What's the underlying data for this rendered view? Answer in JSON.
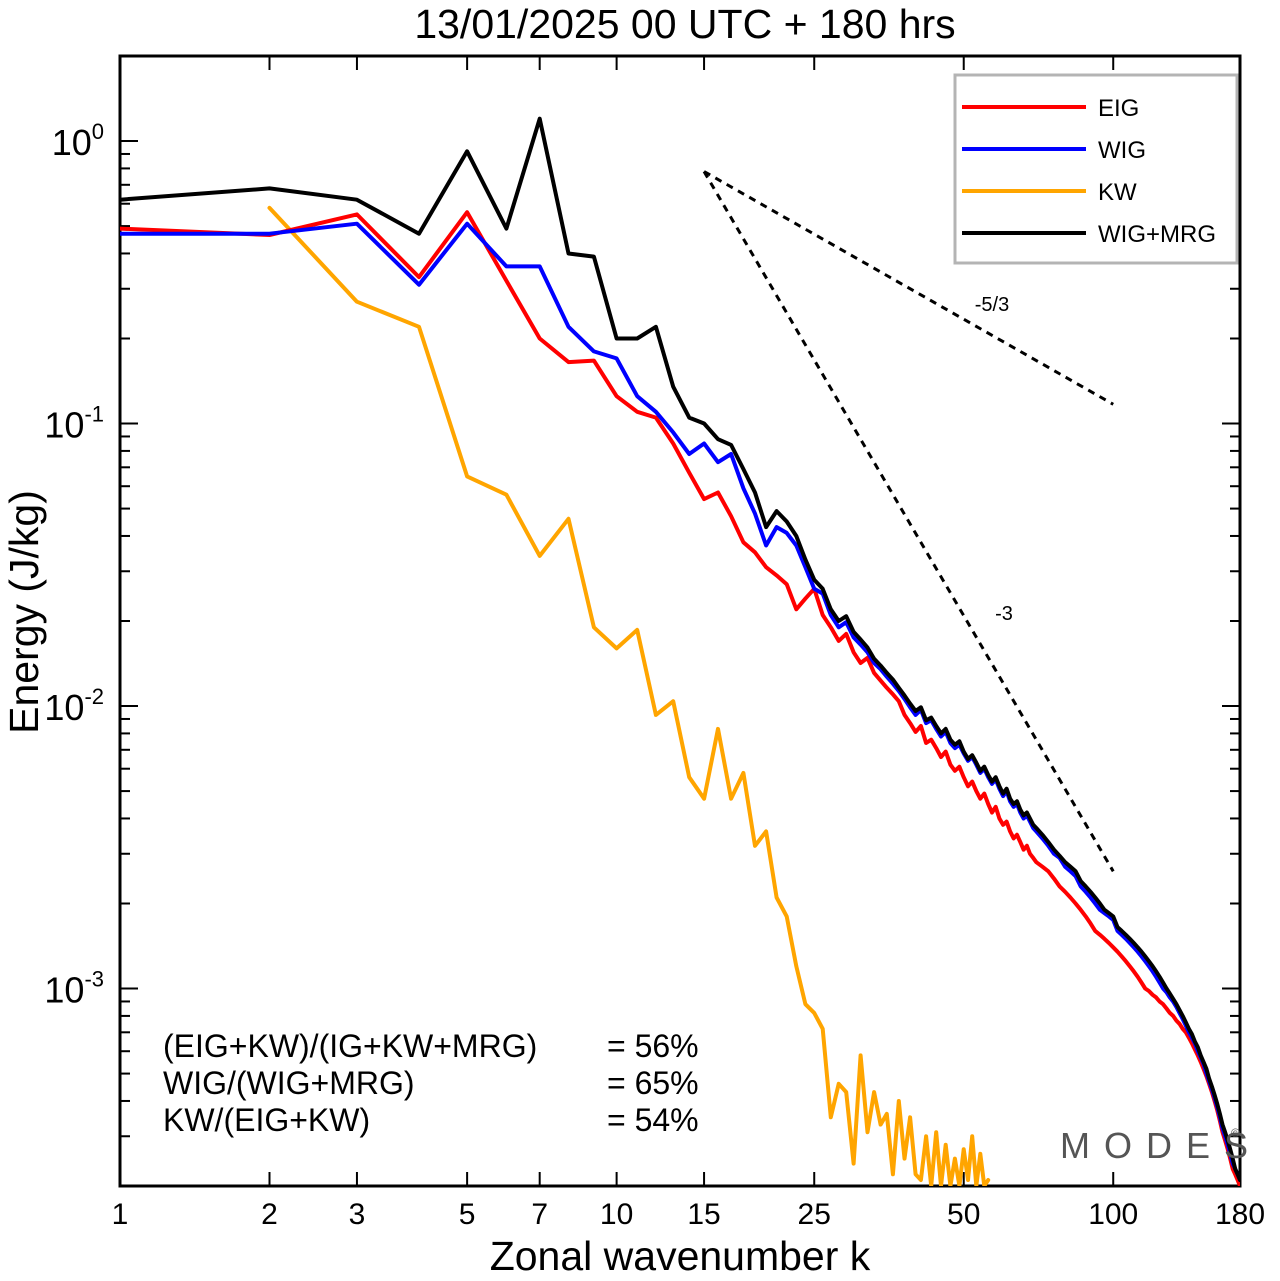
{
  "chart_data": {
    "type": "line",
    "title": "13/01/2025  00 UTC  + 180 hrs",
    "xlabel": "Zonal wavenumber k",
    "ylabel": "Energy (J/kg)",
    "x_scale": "log",
    "y_scale": "log",
    "xlim": [
      1,
      180
    ],
    "ylim": [
      0.0002,
      2.0
    ],
    "x_ticks": [
      1,
      2,
      3,
      5,
      7,
      10,
      15,
      25,
      50,
      100,
      180
    ],
    "x_tick_labels": [
      "1",
      "2",
      "3",
      "5",
      "7",
      "10",
      "15",
      "25",
      "50",
      "100",
      "180"
    ],
    "y_ticks": [
      {
        "value": 1,
        "base": "10",
        "exp": "0"
      },
      {
        "value": 0.1,
        "base": "10",
        "exp": "-1"
      },
      {
        "value": 0.01,
        "base": "10",
        "exp": "-2"
      },
      {
        "value": 0.001,
        "base": "10",
        "exp": "-3"
      }
    ],
    "legend_position": "top-right",
    "series": [
      {
        "name": "EIG",
        "color": "#ff0000",
        "x": [
          1,
          2,
          3,
          4,
          5,
          6,
          7,
          8,
          9,
          10,
          11,
          12,
          13,
          14,
          15,
          16,
          17,
          18,
          19,
          20,
          21,
          22,
          23,
          24,
          25,
          26,
          27,
          28,
          29,
          30,
          31,
          32,
          33,
          34,
          35,
          36,
          37,
          38,
          39,
          40,
          41,
          42,
          43,
          44,
          45,
          46,
          47,
          48,
          49,
          50,
          51,
          52,
          53,
          54,
          55,
          56,
          57,
          58,
          59,
          60,
          61,
          62,
          63,
          64,
          65,
          66,
          67,
          68,
          69,
          70,
          72,
          74,
          76,
          78,
          80,
          82,
          84,
          86,
          88,
          90,
          92,
          94,
          96,
          98,
          100,
          102,
          104,
          106,
          108,
          110,
          112,
          114,
          116,
          118,
          120,
          122,
          124,
          126,
          128,
          130,
          132,
          134,
          136,
          138,
          140,
          142,
          144,
          146,
          148,
          150,
          152,
          154,
          156,
          158,
          160,
          162,
          164,
          166,
          168,
          170,
          172,
          174,
          176,
          178,
          180
        ],
        "values": [
          0.49,
          0.465,
          0.55,
          0.33,
          0.56,
          0.32,
          0.2,
          0.165,
          0.167,
          0.125,
          0.11,
          0.105,
          0.085,
          0.067,
          0.054,
          0.057,
          0.047,
          0.038,
          0.035,
          0.031,
          0.029,
          0.027,
          0.022,
          0.024,
          0.026,
          0.021,
          0.019,
          0.017,
          0.018,
          0.0155,
          0.0142,
          0.0148,
          0.0131,
          0.0123,
          0.0116,
          0.011,
          0.0104,
          0.0093,
          0.0087,
          0.0081,
          0.0085,
          0.0074,
          0.0076,
          0.0071,
          0.0066,
          0.0069,
          0.0062,
          0.0059,
          0.0061,
          0.0056,
          0.0052,
          0.0054,
          0.005,
          0.0047,
          0.0049,
          0.0045,
          0.0042,
          0.0044,
          0.004,
          0.0038,
          0.0039,
          0.0036,
          0.0034,
          0.0035,
          0.0033,
          0.0031,
          0.0032,
          0.003,
          0.0029,
          0.0028,
          0.0027,
          0.0026,
          0.00245,
          0.0023,
          0.0022,
          0.0021,
          0.002,
          0.0019,
          0.0018,
          0.0017,
          0.0016,
          0.00155,
          0.0015,
          0.00145,
          0.0014,
          0.00135,
          0.0013,
          0.00125,
          0.0012,
          0.00115,
          0.0011,
          0.00105,
          0.001,
          0.00098,
          0.00095,
          0.00093,
          0.0009,
          0.00088,
          0.00085,
          0.00082,
          0.0008,
          0.00077,
          0.00075,
          0.00072,
          0.0007,
          0.00067,
          0.00064,
          0.00061,
          0.00058,
          0.00055,
          0.00052,
          0.00049,
          0.00046,
          0.00043,
          0.0004,
          0.00037,
          0.00034,
          0.00031,
          0.00029,
          0.00027,
          0.00025,
          0.00023,
          0.00022,
          0.00021,
          0.0002
        ]
      },
      {
        "name": "WIG",
        "color": "#0000ff",
        "x": [
          1,
          2,
          3,
          4,
          5,
          6,
          7,
          8,
          9,
          10,
          11,
          12,
          13,
          14,
          15,
          16,
          17,
          18,
          19,
          20,
          21,
          22,
          23,
          24,
          25,
          26,
          27,
          28,
          29,
          30,
          31,
          32,
          33,
          34,
          35,
          36,
          37,
          38,
          39,
          40,
          41,
          42,
          43,
          44,
          45,
          46,
          47,
          48,
          49,
          50,
          51,
          52,
          53,
          54,
          55,
          56,
          57,
          58,
          59,
          60,
          61,
          62,
          63,
          64,
          65,
          66,
          67,
          68,
          69,
          70,
          72,
          74,
          76,
          78,
          80,
          82,
          84,
          86,
          88,
          90,
          92,
          94,
          96,
          98,
          100,
          102,
          104,
          106,
          108,
          110,
          112,
          114,
          116,
          118,
          120,
          122,
          124,
          126,
          128,
          130,
          132,
          134,
          136,
          138,
          140,
          142,
          144,
          146,
          148,
          150,
          152,
          154,
          156,
          158,
          160,
          162,
          164,
          166,
          168,
          170,
          172,
          174,
          176,
          178,
          180
        ],
        "values": [
          0.47,
          0.47,
          0.51,
          0.31,
          0.51,
          0.36,
          0.36,
          0.22,
          0.18,
          0.17,
          0.125,
          0.11,
          0.093,
          0.078,
          0.085,
          0.073,
          0.078,
          0.059,
          0.048,
          0.037,
          0.043,
          0.041,
          0.037,
          0.031,
          0.026,
          0.025,
          0.021,
          0.019,
          0.0198,
          0.0175,
          0.0165,
          0.0155,
          0.0142,
          0.0135,
          0.0127,
          0.012,
          0.0113,
          0.0106,
          0.0099,
          0.0093,
          0.0097,
          0.0087,
          0.0089,
          0.0083,
          0.0078,
          0.0081,
          0.0074,
          0.0071,
          0.0073,
          0.0068,
          0.0064,
          0.0066,
          0.0062,
          0.0058,
          0.006,
          0.0056,
          0.0053,
          0.0055,
          0.0051,
          0.0048,
          0.005,
          0.0046,
          0.0044,
          0.0045,
          0.0042,
          0.004,
          0.0041,
          0.0039,
          0.0037,
          0.0036,
          0.0034,
          0.0032,
          0.003,
          0.0029,
          0.0027,
          0.0026,
          0.0025,
          0.0023,
          0.0022,
          0.0021,
          0.002,
          0.0019,
          0.00185,
          0.0018,
          0.00175,
          0.0016,
          0.00155,
          0.0015,
          0.00145,
          0.0014,
          0.00135,
          0.0013,
          0.00125,
          0.0012,
          0.00115,
          0.0011,
          0.00105,
          0.001,
          0.00097,
          0.00093,
          0.0009,
          0.00086,
          0.00082,
          0.00078,
          0.00074,
          0.0007,
          0.00067,
          0.00064,
          0.0006,
          0.00057,
          0.00054,
          0.0005,
          0.00047,
          0.00044,
          0.00041,
          0.00038,
          0.00035,
          0.00032,
          0.0003,
          0.00028,
          0.00026,
          0.00024,
          0.00023,
          0.00022,
          0.00021
        ]
      },
      {
        "name": "KW",
        "color": "#ffa500",
        "x": [
          2,
          3,
          4,
          5,
          6,
          7,
          8,
          9,
          10,
          11,
          12,
          13,
          14,
          15,
          16,
          17,
          18,
          19,
          20,
          21,
          22,
          23,
          24,
          25,
          26,
          27,
          28,
          29,
          30,
          31,
          32,
          33,
          34,
          35,
          36,
          37,
          38,
          39,
          40,
          41,
          42,
          43,
          44,
          45,
          46,
          47,
          48,
          49,
          50,
          51,
          52,
          53,
          54,
          55,
          56
        ],
        "values": [
          0.58,
          0.27,
          0.22,
          0.065,
          0.056,
          0.034,
          0.046,
          0.019,
          0.016,
          0.0186,
          0.0093,
          0.0104,
          0.0056,
          0.0047,
          0.0083,
          0.0047,
          0.0058,
          0.0032,
          0.0036,
          0.0021,
          0.0018,
          0.0012,
          0.00088,
          0.00082,
          0.00072,
          0.00035,
          0.00046,
          0.00043,
          0.00024,
          0.00058,
          0.00031,
          0.00043,
          0.00033,
          0.00036,
          0.00022,
          0.0004,
          0.00025,
          0.00035,
          0.00022,
          0.00021,
          0.0003,
          0.0002,
          0.00031,
          0.0002,
          0.00028,
          0.0002,
          0.00025,
          0.0002,
          0.00027,
          0.00021,
          0.0003,
          0.0002,
          0.00026,
          0.0002,
          0.00021
        ]
      },
      {
        "name": "WIG+MRG",
        "color": "#000000",
        "x": [
          1,
          2,
          3,
          4,
          5,
          6,
          7,
          8,
          9,
          10,
          11,
          12,
          13,
          14,
          15,
          16,
          17,
          18,
          19,
          20,
          21,
          22,
          23,
          24,
          25,
          26,
          27,
          28,
          29,
          30,
          31,
          32,
          33,
          34,
          35,
          36,
          37,
          38,
          39,
          40,
          41,
          42,
          43,
          44,
          45,
          46,
          47,
          48,
          49,
          50,
          51,
          52,
          53,
          54,
          55,
          56,
          57,
          58,
          59,
          60,
          61,
          62,
          63,
          64,
          65,
          66,
          67,
          68,
          69,
          70,
          72,
          74,
          76,
          78,
          80,
          82,
          84,
          86,
          88,
          90,
          92,
          94,
          96,
          98,
          100,
          102,
          104,
          106,
          108,
          110,
          112,
          114,
          116,
          118,
          120,
          122,
          124,
          126,
          128,
          130,
          132,
          134,
          136,
          138,
          140,
          142,
          144,
          146,
          148,
          150,
          152,
          154,
          156,
          158,
          160,
          162,
          164,
          166,
          168,
          170,
          172,
          174,
          176,
          178,
          180
        ],
        "values": [
          0.62,
          0.68,
          0.62,
          0.47,
          0.92,
          0.49,
          1.2,
          0.4,
          0.39,
          0.2,
          0.2,
          0.22,
          0.135,
          0.105,
          0.1,
          0.088,
          0.084,
          0.069,
          0.057,
          0.043,
          0.049,
          0.045,
          0.04,
          0.033,
          0.028,
          0.026,
          0.022,
          0.02,
          0.0208,
          0.0183,
          0.0172,
          0.0161,
          0.0147,
          0.0139,
          0.0131,
          0.0124,
          0.0116,
          0.0109,
          0.0102,
          0.0096,
          0.0099,
          0.0089,
          0.0091,
          0.0085,
          0.008,
          0.0083,
          0.0076,
          0.0073,
          0.0075,
          0.0069,
          0.0065,
          0.0067,
          0.0063,
          0.0059,
          0.0061,
          0.0057,
          0.0054,
          0.0056,
          0.0052,
          0.0049,
          0.0051,
          0.0047,
          0.0045,
          0.0046,
          0.0043,
          0.0041,
          0.0042,
          0.004,
          0.0038,
          0.0037,
          0.0035,
          0.0033,
          0.0031,
          0.00295,
          0.0028,
          0.0027,
          0.0026,
          0.0024,
          0.0023,
          0.0022,
          0.0021,
          0.002,
          0.0019,
          0.00185,
          0.0018,
          0.00165,
          0.0016,
          0.00155,
          0.0015,
          0.00145,
          0.0014,
          0.00135,
          0.0013,
          0.00125,
          0.0012,
          0.00115,
          0.0011,
          0.00105,
          0.001,
          0.00096,
          0.00092,
          0.00088,
          0.00084,
          0.0008,
          0.00076,
          0.00072,
          0.00069,
          0.00065,
          0.00062,
          0.00058,
          0.00055,
          0.00052,
          0.00048,
          0.00045,
          0.00042,
          0.00039,
          0.00036,
          0.00033,
          0.00031,
          0.00029,
          0.00027,
          0.00025,
          0.00023,
          0.00022,
          0.00021
        ]
      }
    ],
    "reference_lines": [
      {
        "label": "-5/3",
        "x": [
          15,
          100
        ],
        "values": [
          0.78,
          0.117
        ]
      },
      {
        "label": "-3",
        "x": [
          15,
          100
        ],
        "values": [
          0.78,
          0.0026
        ]
      }
    ],
    "annotations": [
      {
        "text": "(EIG+KW)/(IG+KW+MRG)",
        "value": "= 56%"
      },
      {
        "text": "WIG/(WIG+MRG)",
        "value": "= 65%"
      },
      {
        "text": "KW/(EIG+KW)",
        "value": "= 54%"
      }
    ],
    "watermark": "MODES",
    "watermark_mark": "©"
  }
}
